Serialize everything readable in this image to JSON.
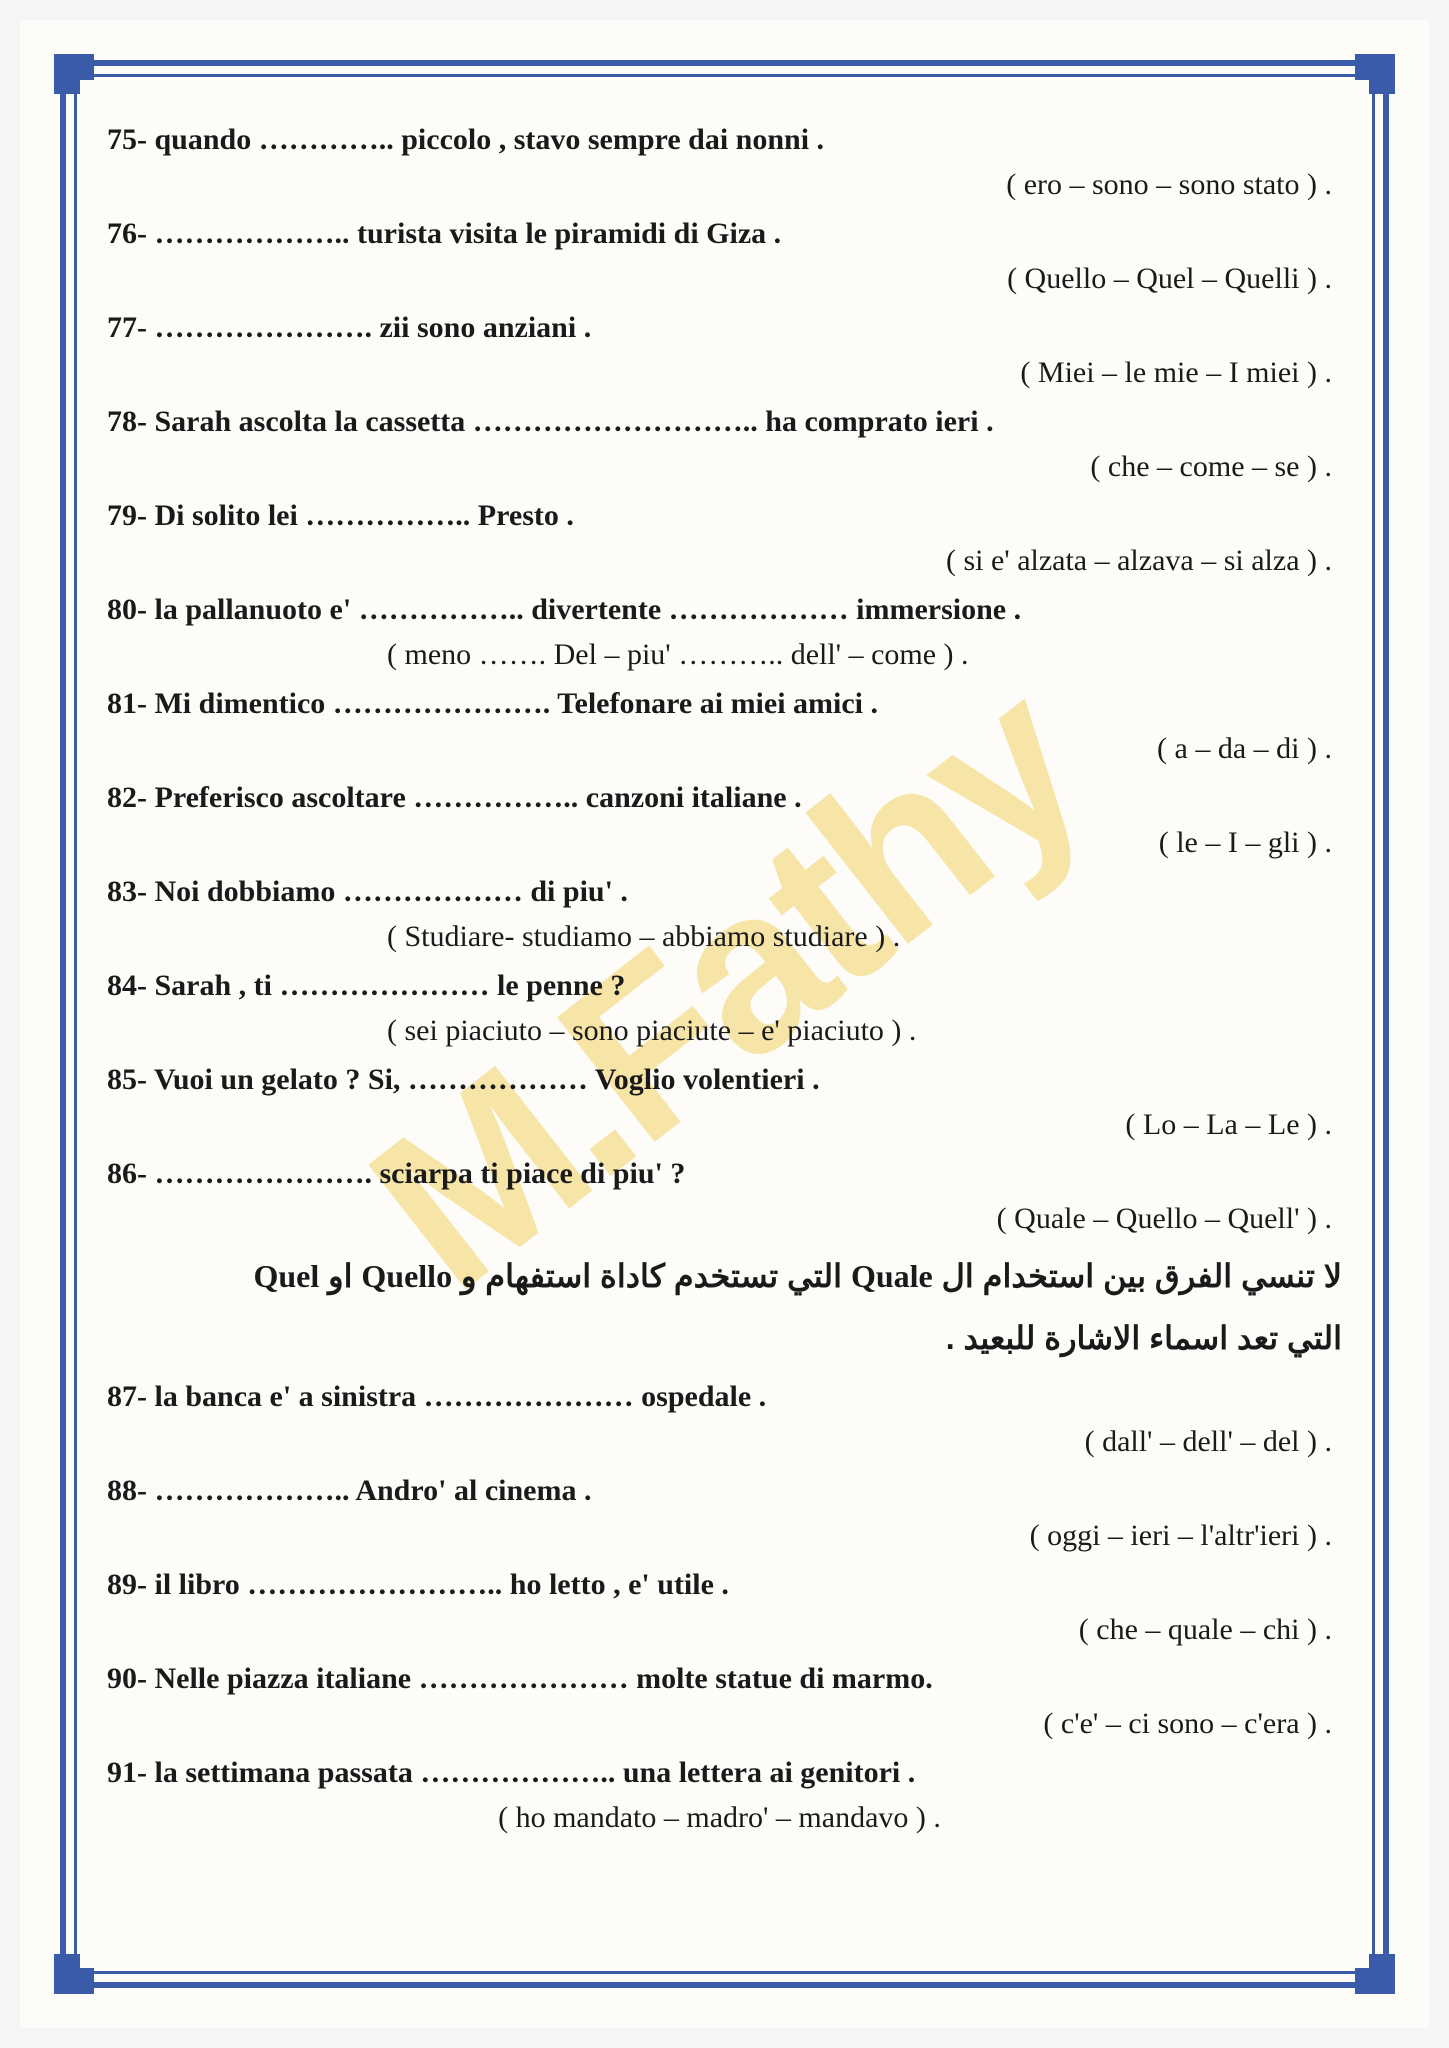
{
  "watermark": "M.Fathy",
  "items": [
    {
      "n": "75",
      "q": "quando ………….. piccolo , stavo sempre dai nonni .",
      "opts": "( ero – sono – sono stato ) .",
      "align": "right"
    },
    {
      "n": "76",
      "q": "……………….. turista visita le piramidi di Giza .",
      "opts": "( Quello – Quel – Quelli ) .",
      "align": "right"
    },
    {
      "n": "77",
      "q": "…………………. zii sono anziani .",
      "opts": "( Miei – le mie – I miei ) .",
      "align": "right"
    },
    {
      "n": "78",
      "q": "Sarah ascolta la cassetta ……………………….. ha comprato ieri .",
      "opts": "( che – come – se ) .",
      "align": "right"
    },
    {
      "n": "79",
      "q": "Di solito lei …………….. Presto .",
      "opts": "( si e' alzata – alzava – si alza ) .",
      "align": "right"
    },
    {
      "n": "80",
      "q": "la pallanuoto e' …………….. divertente ……………… immersione .",
      "opts": "( meno ……. Del – piu' ……….. dell' – come ) .",
      "align": "left"
    },
    {
      "n": "81",
      "q": "Mi dimentico …………………. Telefonare ai miei amici .",
      "opts": "( a – da – di ) .",
      "align": "right"
    },
    {
      "n": "82",
      "q": "Preferisco ascoltare …………….. canzoni italiane .",
      "opts": "( le – I – gli ) .",
      "align": "right"
    },
    {
      "n": "83",
      "q": "Noi dobbiamo ……………… di piu' .",
      "opts": "( Studiare- studiamo – abbiamo studiare ) .",
      "align": "left"
    },
    {
      "n": "84",
      "q": "Sarah , ti ………………… le penne ?",
      "opts": "( sei piaciuto – sono piaciute – e' piaciuto ) .",
      "align": "left"
    },
    {
      "n": "85",
      "q": "Vuoi un gelato ? Si, ……………… Voglio volentieri .",
      "opts": "( Lo – La – Le ) .",
      "align": "right"
    },
    {
      "n": "86",
      "q": "…………………. sciarpa ti piace di piu' ?",
      "opts": "( Quale – Quello – Quell' ) .",
      "align": "right"
    }
  ],
  "note_line1_pre": "لا تنسي الفرق بين استخدام ال ",
  "note_w1": "Quale",
  "note_line1_mid": " التي تستخدم كاداة استفهام و ",
  "note_w2": "Quello",
  "note_line1_or": " او ",
  "note_w3": "Quel",
  "note_line2": "التي تعد اسماء الاشارة للبعيد .",
  "items2": [
    {
      "n": "87",
      "q": "la banca e' a sinistra ………………… ospedale .",
      "opts": "( dall' – dell' – del ) .",
      "align": "right"
    },
    {
      "n": "88",
      "q": "……………….. Andro' al cinema .",
      "opts": "( oggi – ieri – l'altr'ieri ) .",
      "align": "right"
    },
    {
      "n": "89",
      "q": "il libro …………………….. ho letto , e' utile .",
      "opts": "( che – quale – chi ) .",
      "align": "right"
    },
    {
      "n": "90",
      "q": "Nelle piazza italiane ………………… molte statue di marmo.",
      "opts": "( c'e' – ci sono – c'era ) .",
      "align": "right"
    },
    {
      "n": "91",
      "q": "la settimana passata ……………….. una lettera ai genitori .",
      "opts": "( ho mandato – madro' – mandavo ) .",
      "align": "center"
    }
  ]
}
